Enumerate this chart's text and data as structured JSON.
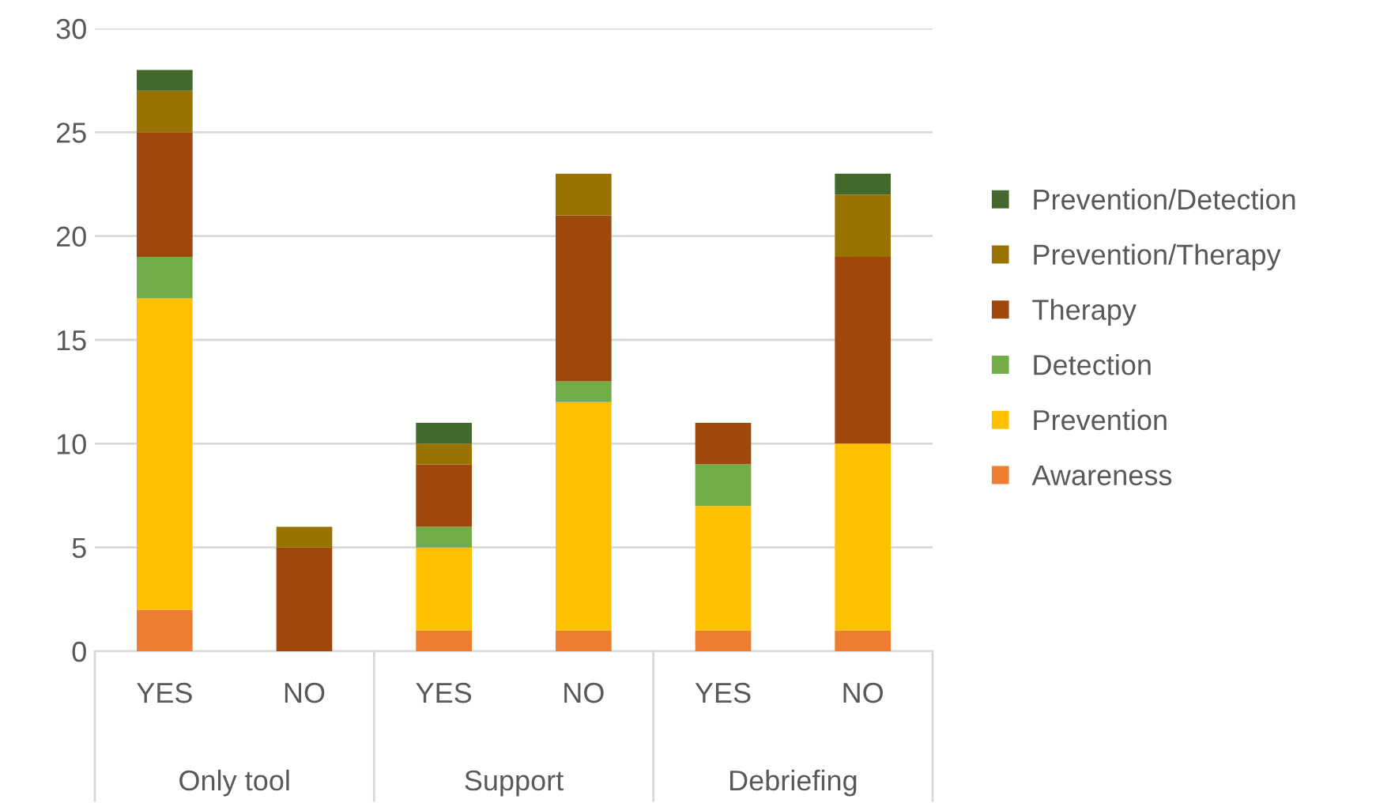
{
  "chart_data": {
    "type": "bar",
    "stacked": true,
    "categories": [
      "YES",
      "NO",
      "YES",
      "NO",
      "YES",
      "NO"
    ],
    "annotations": [
      "Only tool",
      "Support",
      "Debriefing"
    ],
    "series": [
      {
        "name": "Awareness",
        "color": "#ed7d31",
        "values": [
          2,
          0,
          1,
          1,
          1,
          1
        ]
      },
      {
        "name": "Prevention",
        "color": "#ffc000",
        "values": [
          15,
          0,
          4,
          11,
          6,
          9
        ]
      },
      {
        "name": "Detection",
        "color": "#70ad47",
        "values": [
          2,
          0,
          1,
          1,
          2,
          0
        ]
      },
      {
        "name": "Therapy",
        "color": "#9e480e",
        "values": [
          6,
          5,
          3,
          8,
          2,
          9
        ]
      },
      {
        "name": "Prevention/Therapy",
        "color": "#997300",
        "values": [
          2,
          1,
          1,
          2,
          0,
          3
        ]
      },
      {
        "name": "Prevention/Detection",
        "color": "#43682b",
        "values": [
          1,
          0,
          1,
          0,
          0,
          1
        ]
      }
    ],
    "ylim": [
      0,
      30
    ],
    "yticks": [
      0,
      5,
      10,
      15,
      20,
      25,
      30
    ],
    "grid": "y",
    "legend": "right"
  }
}
